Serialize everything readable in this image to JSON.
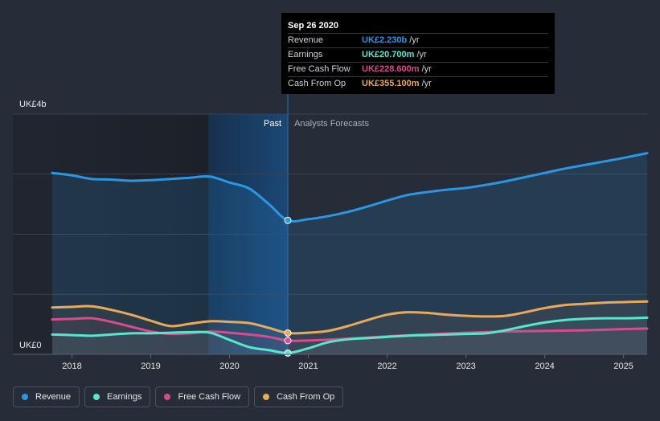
{
  "chart_data": {
    "type": "line",
    "title": "",
    "currency_unit": "UK£",
    "y_axis": {
      "ylim": [
        0,
        4
      ],
      "tick_labels": [
        "UK£0",
        "UK£4b"
      ]
    },
    "x_axis": {
      "tick_labels": [
        "2018",
        "2019",
        "2020",
        "2021",
        "2022",
        "2023",
        "2024",
        "2025"
      ],
      "xlim": [
        2017.25,
        2025.3
      ]
    },
    "past_divider_year": 2020.74,
    "sections": {
      "past": "Past",
      "forecast": "Analysts Forecasts"
    },
    "series": [
      {
        "name": "Revenue",
        "color": "#2b97e3",
        "x": [
          2017.75,
          2018.0,
          2018.25,
          2018.5,
          2018.75,
          2019.0,
          2019.25,
          2019.5,
          2019.75,
          2020.0,
          2020.25,
          2020.5,
          2020.74,
          2021.0,
          2021.25,
          2021.5,
          2021.75,
          2022.0,
          2022.25,
          2022.5,
          2022.75,
          2023.0,
          2023.25,
          2023.5,
          2023.75,
          2024.0,
          2024.25,
          2024.5,
          2024.75,
          2025.0,
          2025.3
        ],
        "values": [
          3.02,
          2.98,
          2.92,
          2.91,
          2.89,
          2.9,
          2.92,
          2.94,
          2.96,
          2.86,
          2.76,
          2.5,
          2.23,
          2.25,
          2.3,
          2.37,
          2.46,
          2.56,
          2.65,
          2.7,
          2.74,
          2.77,
          2.82,
          2.88,
          2.95,
          3.02,
          3.09,
          3.15,
          3.21,
          3.27,
          3.35
        ]
      },
      {
        "name": "Earnings",
        "color": "#58e6d0",
        "x": [
          2017.75,
          2018.0,
          2018.25,
          2018.5,
          2018.75,
          2019.0,
          2019.25,
          2019.5,
          2019.75,
          2020.0,
          2020.25,
          2020.5,
          2020.74,
          2021.0,
          2021.25,
          2021.5,
          2021.75,
          2022.0,
          2022.25,
          2022.5,
          2022.75,
          2023.0,
          2023.25,
          2023.5,
          2023.75,
          2024.0,
          2024.25,
          2024.5,
          2024.75,
          2025.0,
          2025.3
        ],
        "values": [
          0.33,
          0.32,
          0.31,
          0.33,
          0.35,
          0.35,
          0.36,
          0.37,
          0.36,
          0.24,
          0.12,
          0.07,
          0.021,
          0.1,
          0.2,
          0.25,
          0.27,
          0.29,
          0.31,
          0.32,
          0.33,
          0.34,
          0.35,
          0.4,
          0.47,
          0.53,
          0.57,
          0.59,
          0.6,
          0.6,
          0.61
        ]
      },
      {
        "name": "Free Cash Flow",
        "color": "#d84b8e",
        "x": [
          2017.75,
          2018.0,
          2018.25,
          2018.5,
          2018.75,
          2019.0,
          2019.25,
          2019.5,
          2019.75,
          2020.0,
          2020.25,
          2020.5,
          2020.74,
          2021.0,
          2021.5,
          2022.0,
          2022.5,
          2023.0,
          2023.5,
          2024.0,
          2024.5,
          2025.0,
          2025.3
        ],
        "values": [
          0.58,
          0.59,
          0.6,
          0.54,
          0.46,
          0.38,
          0.34,
          0.35,
          0.38,
          0.36,
          0.33,
          0.29,
          0.2286,
          0.23,
          0.26,
          0.3,
          0.33,
          0.36,
          0.38,
          0.39,
          0.4,
          0.42,
          0.43
        ]
      },
      {
        "name": "Cash From Op",
        "color": "#e7aa5b",
        "x": [
          2017.75,
          2018.0,
          2018.25,
          2018.5,
          2018.75,
          2019.0,
          2019.25,
          2019.5,
          2019.75,
          2020.0,
          2020.25,
          2020.5,
          2020.74,
          2021.0,
          2021.25,
          2021.5,
          2021.75,
          2022.0,
          2022.25,
          2022.5,
          2022.75,
          2023.0,
          2023.25,
          2023.5,
          2023.75,
          2024.0,
          2024.25,
          2024.5,
          2024.75,
          2025.0,
          2025.3
        ],
        "values": [
          0.78,
          0.79,
          0.8,
          0.74,
          0.66,
          0.56,
          0.47,
          0.51,
          0.55,
          0.54,
          0.52,
          0.44,
          0.3551,
          0.36,
          0.39,
          0.47,
          0.57,
          0.66,
          0.7,
          0.69,
          0.66,
          0.64,
          0.63,
          0.64,
          0.7,
          0.77,
          0.82,
          0.84,
          0.86,
          0.87,
          0.88
        ]
      }
    ]
  },
  "tooltip": {
    "date": "Sep 26 2020",
    "unit": "/yr",
    "rows": [
      {
        "label": "Revenue",
        "value": "UK£2.230b",
        "color": "#2b97e3"
      },
      {
        "label": "Earnings",
        "value": "UK£20.700m",
        "color": "#58e6d0"
      },
      {
        "label": "Free Cash Flow",
        "value": "UK£228.600m",
        "color": "#d84b8e"
      },
      {
        "label": "Cash From Op",
        "value": "UK£355.100m",
        "color": "#e7aa5b"
      }
    ]
  },
  "legend": [
    {
      "label": "Revenue",
      "color": "#2b97e3"
    },
    {
      "label": "Earnings",
      "color": "#58e6d0"
    },
    {
      "label": "Free Cash Flow",
      "color": "#d84b8e"
    },
    {
      "label": "Cash From Op",
      "color": "#e7aa5b"
    }
  ]
}
